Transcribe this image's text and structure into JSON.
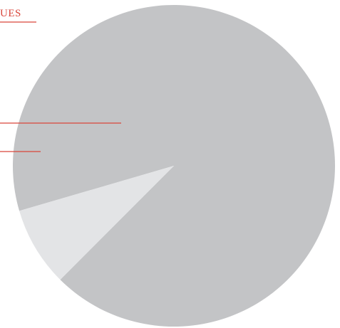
{
  "header": {
    "label": "UES",
    "accent_color": "#d9463b"
  },
  "chart_data": {
    "type": "pie",
    "title": "",
    "slices": [
      {
        "value": 92,
        "color": "#c3c4c6"
      },
      {
        "value": 8,
        "color": "#e3e4e6"
      }
    ],
    "start_angle_deg": 163.7,
    "legend": "none",
    "grid": false
  }
}
